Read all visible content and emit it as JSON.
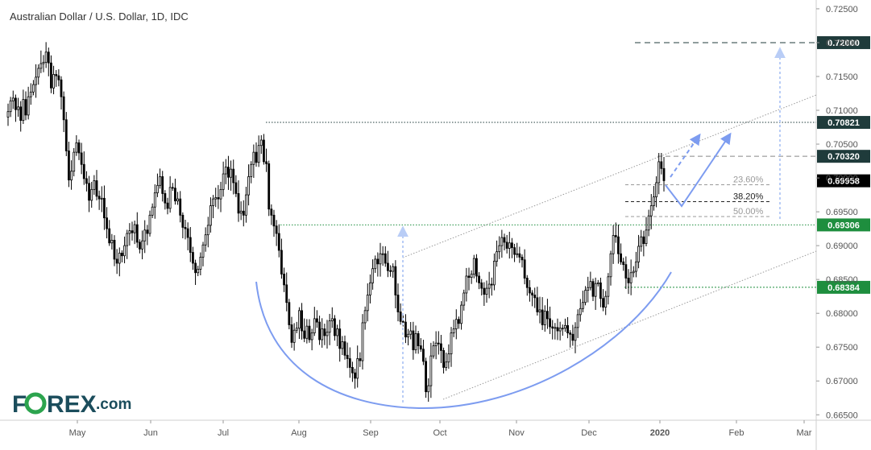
{
  "chart_data": {
    "type": "candlestick",
    "title": "Australian Dollar / U.S. Dollar, 1D, IDC",
    "ylim": [
      0.6642,
      0.7263
    ],
    "y_ticks": [
      "0.72500",
      "0.72000",
      "0.71500",
      "0.71000",
      "0.70500",
      "0.70000",
      "0.69500",
      "0.69000",
      "0.68500",
      "0.68000",
      "0.67500",
      "0.67000",
      "0.66500"
    ],
    "x_ticks": [
      "May",
      "Jun",
      "Jul",
      "Aug",
      "Sep",
      "Oct",
      "Nov",
      "Dec",
      "2020",
      "Feb",
      "Mar"
    ],
    "price_tags": [
      {
        "label": "0.72000",
        "value": 0.72,
        "color": "#1f3b3b"
      },
      {
        "label": "0.70821",
        "value": 0.70821,
        "color": "#1f3b3b"
      },
      {
        "label": "0.70320",
        "value": 0.7032,
        "color": "#1f3b3b"
      },
      {
        "label": "0.69958",
        "value": 0.69958,
        "color": "#000000"
      },
      {
        "label": "0.69306",
        "value": 0.69306,
        "color": "#1e8e3e"
      },
      {
        "label": "0.68384",
        "value": 0.68384,
        "color": "#1e8e3e"
      }
    ],
    "fib_levels": [
      {
        "label": "23.60%",
        "value": 0.699,
        "color": "#999999"
      },
      {
        "label": "38.20%",
        "value": 0.6965,
        "color": "#222222"
      },
      {
        "label": "50.00%",
        "value": 0.6943,
        "color": "#999999"
      }
    ],
    "closes": [
      0.7098,
      0.7114,
      0.7118,
      0.7101,
      0.7105,
      0.7085,
      0.7116,
      0.7093,
      0.712,
      0.7127,
      0.7138,
      0.7149,
      0.7162,
      0.7169,
      0.7171,
      0.7186,
      0.717,
      0.7133,
      0.7153,
      0.7151,
      0.7145,
      0.712,
      0.7086,
      0.704,
      0.6997,
      0.701,
      0.7038,
      0.7052,
      0.7037,
      0.702,
      0.6999,
      0.6992,
      0.6967,
      0.6983,
      0.6996,
      0.6973,
      0.6969,
      0.697,
      0.6941,
      0.6925,
      0.6904,
      0.6908,
      0.688,
      0.6874,
      0.6889,
      0.6885,
      0.69,
      0.6918,
      0.6922,
      0.6919,
      0.6931,
      0.6905,
      0.6895,
      0.6907,
      0.6923,
      0.6918,
      0.6945,
      0.6957,
      0.6978,
      0.6989,
      0.7002,
      0.6977,
      0.6963,
      0.6955,
      0.6986,
      0.6985,
      0.6966,
      0.6969,
      0.6945,
      0.6927,
      0.6925,
      0.6912,
      0.689,
      0.6874,
      0.686,
      0.6865,
      0.6883,
      0.6901,
      0.6916,
      0.693,
      0.6959,
      0.6969,
      0.6971,
      0.6969,
      0.6983,
      0.7006,
      0.7016,
      0.7001,
      0.7013,
      0.6993,
      0.6977,
      0.6948,
      0.6951,
      0.6945,
      0.6975,
      0.7002,
      0.702,
      0.7038,
      0.7023,
      0.7048,
      0.7056,
      0.7024,
      0.7021,
      0.6954,
      0.6945,
      0.6929,
      0.6918,
      0.6893,
      0.6858,
      0.6842,
      0.6816,
      0.6783,
      0.6757,
      0.6775,
      0.6778,
      0.6804,
      0.6774,
      0.6763,
      0.6781,
      0.6761,
      0.6771,
      0.6792,
      0.6787,
      0.6761,
      0.6777,
      0.6767,
      0.6772,
      0.6789,
      0.6792,
      0.6767,
      0.6777,
      0.6748,
      0.6758,
      0.6738,
      0.6733,
      0.672,
      0.6712,
      0.6704,
      0.6733,
      0.673,
      0.6786,
      0.6804,
      0.6827,
      0.6845,
      0.6866,
      0.688,
      0.6873,
      0.6888,
      0.6888,
      0.6874,
      0.6863,
      0.6862,
      0.6869,
      0.6827,
      0.6802,
      0.6788,
      0.6787,
      0.6765,
      0.6769,
      0.6774,
      0.6746,
      0.677,
      0.6752,
      0.6747,
      0.6729,
      0.6684,
      0.6693,
      0.6737,
      0.6752,
      0.6756,
      0.6755,
      0.6745,
      0.672,
      0.6728,
      0.674,
      0.6771,
      0.6777,
      0.6791,
      0.6785,
      0.6812,
      0.683,
      0.6855,
      0.6853,
      0.6858,
      0.6881,
      0.6855,
      0.6845,
      0.6837,
      0.6828,
      0.6837,
      0.6843,
      0.6842,
      0.6877,
      0.6891,
      0.69,
      0.6912,
      0.6905,
      0.6896,
      0.6904,
      0.6897,
      0.6887,
      0.6888,
      0.6883,
      0.6879,
      0.6852,
      0.6838,
      0.683,
      0.6827,
      0.6823,
      0.6802,
      0.6805,
      0.6783,
      0.6803,
      0.6792,
      0.678,
      0.6778,
      0.6779,
      0.6774,
      0.6778,
      0.6778,
      0.6782,
      0.6771,
      0.6769,
      0.676,
      0.6779,
      0.6798,
      0.6807,
      0.6816,
      0.6834,
      0.6838,
      0.6847,
      0.6825,
      0.6844,
      0.6845,
      0.6822,
      0.6809,
      0.6825,
      0.6854,
      0.6888,
      0.6915,
      0.6913,
      0.6888,
      0.6876,
      0.6872,
      0.6852,
      0.6845,
      0.686,
      0.6862,
      0.6876,
      0.6899,
      0.6913,
      0.6903,
      0.6923,
      0.6944,
      0.6959,
      0.6972,
      0.6993,
      0.7024,
      0.7014,
      0.6996
    ]
  }
}
